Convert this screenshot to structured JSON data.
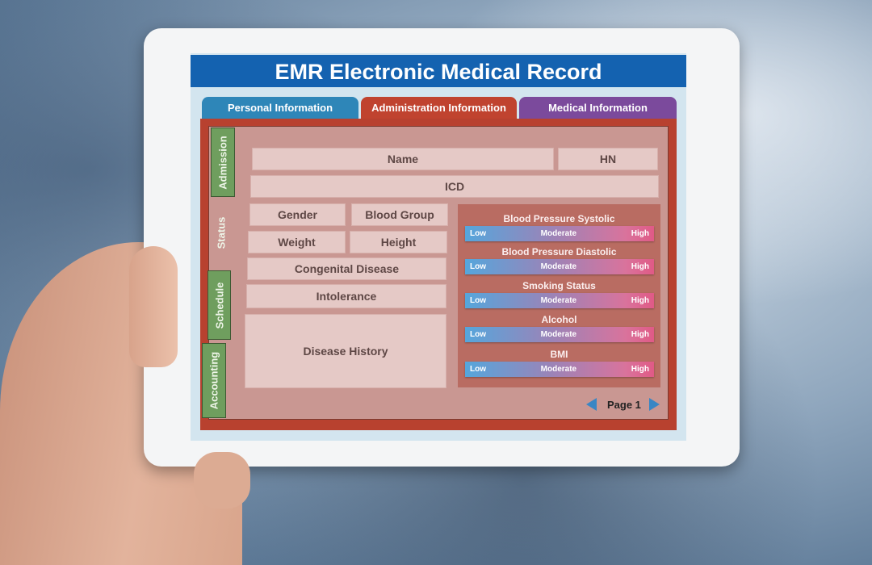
{
  "app": {
    "title": "EMR Electronic Medical Record"
  },
  "tabs": [
    {
      "label": "Personal Information",
      "color": "#2e86b8"
    },
    {
      "label": "Administration Information",
      "color": "#c0432f",
      "active": true
    },
    {
      "label": "Medical  Information",
      "color": "#7b4a9c"
    }
  ],
  "side_tabs": [
    "Admission",
    "Status",
    "Schedule",
    "Accounting"
  ],
  "fields": {
    "name": "Name",
    "hn": "HN",
    "icd": "ICD",
    "gender": "Gender",
    "blood_group": "Blood Group",
    "weight": "Weight",
    "height": "Height",
    "congenital": "Congenital Disease",
    "intolerance": "Intolerance",
    "disease_history": "Disease History"
  },
  "scales": [
    {
      "label": "Blood Pressure Systolic",
      "low": "Low",
      "mid": "Moderate",
      "high": "High"
    },
    {
      "label": "Blood Pressure Diastolic",
      "low": "Low",
      "mid": "Moderate",
      "high": "High"
    },
    {
      "label": "Smoking Status",
      "low": "Low",
      "mid": "Moderate",
      "high": "High"
    },
    {
      "label": "Alcohol",
      "low": "Low",
      "mid": "Moderate",
      "high": "High"
    },
    {
      "label": "BMI",
      "low": "Low",
      "mid": "Moderate",
      "high": "High"
    }
  ],
  "pagination": {
    "label": "Page 1"
  },
  "colors": {
    "header": "#1462b0",
    "panel": "#b8412f",
    "side_tab": "#6f9e5e",
    "arrow": "#3a86c4"
  }
}
